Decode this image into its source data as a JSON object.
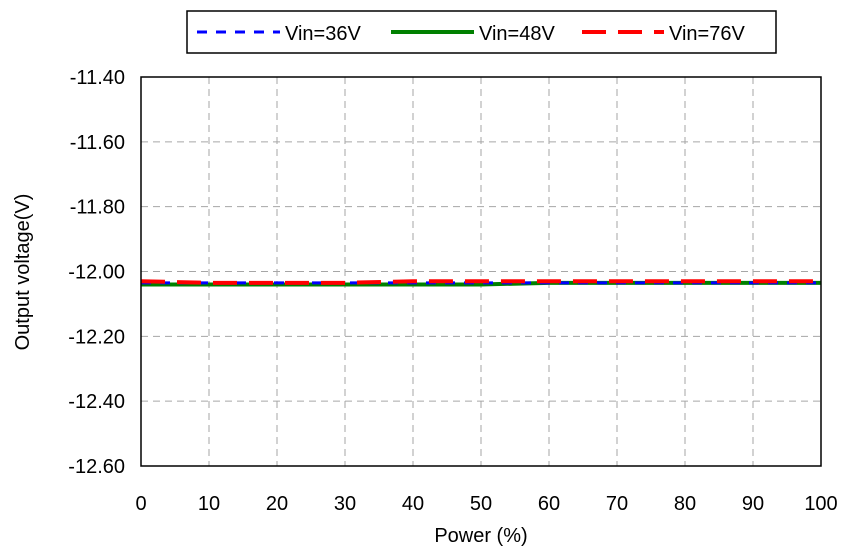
{
  "chart_data": {
    "type": "line",
    "xlabel": "Power (%)",
    "ylabel": "Output voltage(V)",
    "xlim": [
      0,
      100
    ],
    "ylim": [
      -12.6,
      -11.4
    ],
    "x_ticks": [
      "0",
      "10",
      "20",
      "30",
      "40",
      "50",
      "60",
      "70",
      "80",
      "90",
      "100"
    ],
    "y_ticks": [
      "-11.40",
      "-11.60",
      "-11.80",
      "-12.00",
      "-12.20",
      "-12.40",
      "-12.60"
    ],
    "grid": true,
    "legend_position": "top",
    "x": [
      0,
      10,
      20,
      30,
      40,
      50,
      60,
      70,
      80,
      90,
      100
    ],
    "series": [
      {
        "name": "Vin=36V",
        "color": "#0000ff",
        "style": "dotted",
        "values": [
          -12.035,
          -12.035,
          -12.035,
          -12.035,
          -12.035,
          -12.035,
          -12.035,
          -12.035,
          -12.035,
          -12.035,
          -12.035
        ]
      },
      {
        "name": "Vin=48V",
        "color": "#008000",
        "style": "solid",
        "values": [
          -12.04,
          -12.04,
          -12.04,
          -12.04,
          -12.04,
          -12.04,
          -12.035,
          -12.035,
          -12.035,
          -12.035,
          -12.035
        ]
      },
      {
        "name": "Vin=76V",
        "color": "#ff0000",
        "style": "dashed",
        "values": [
          -12.03,
          -12.035,
          -12.035,
          -12.035,
          -12.03,
          -12.03,
          -12.03,
          -12.03,
          -12.03,
          -12.03,
          -12.03
        ]
      }
    ]
  }
}
